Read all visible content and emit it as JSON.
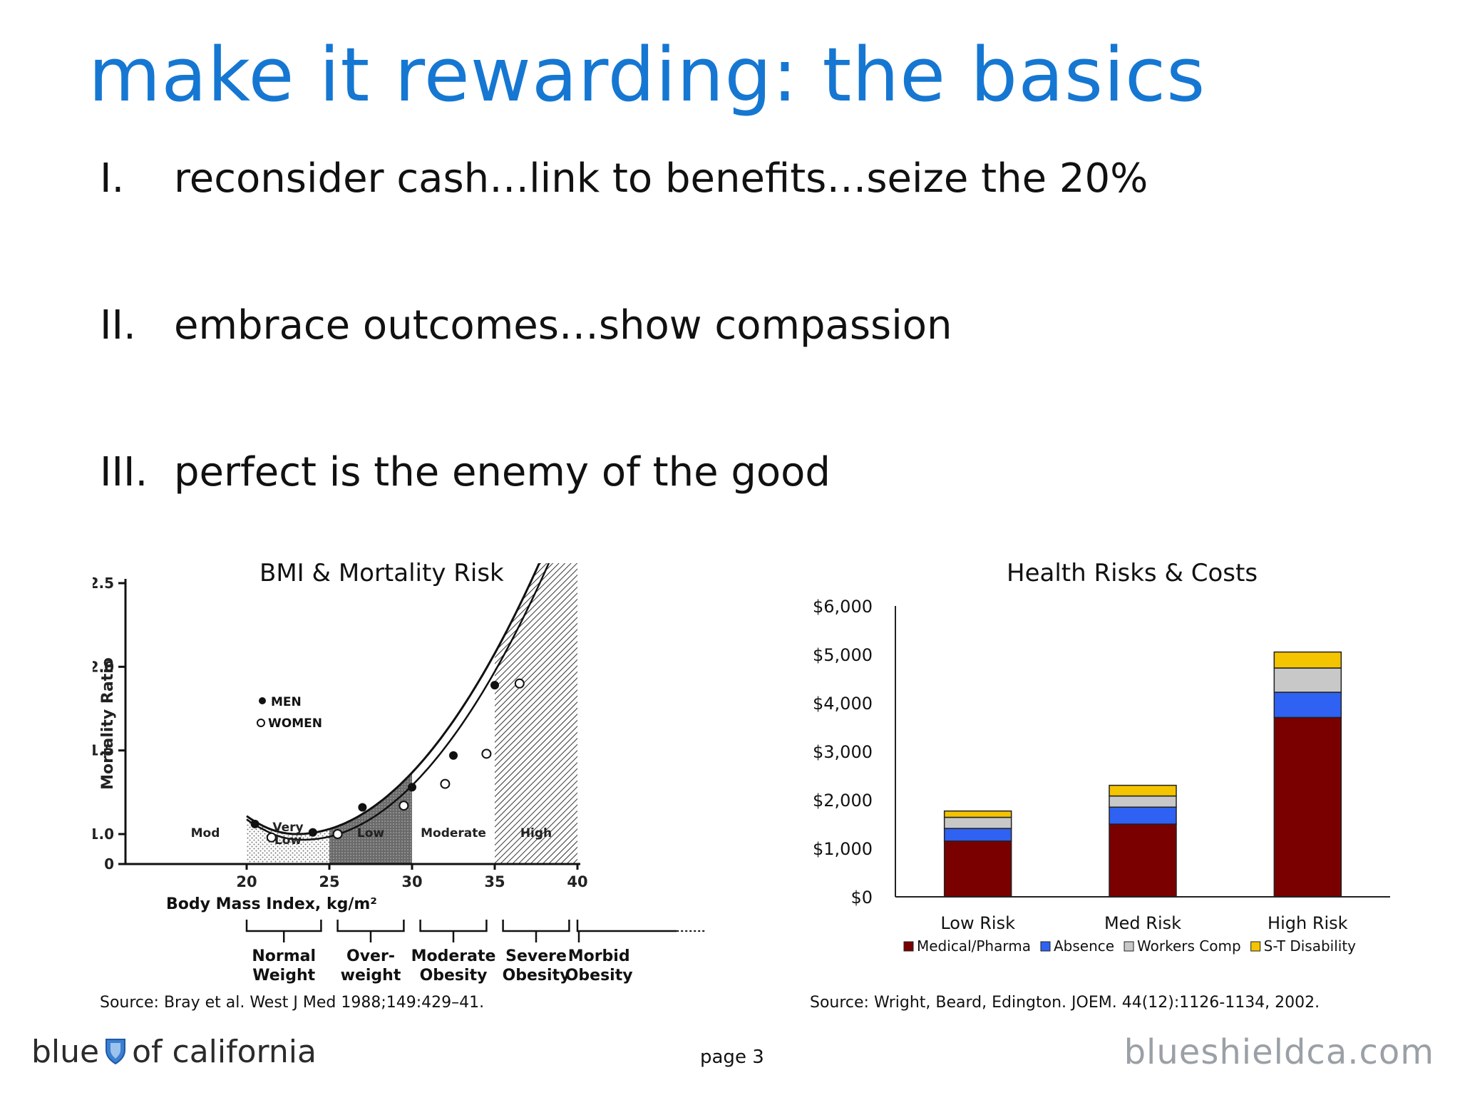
{
  "title": "make it rewarding: the basics",
  "bullets": [
    {
      "num": "I.",
      "text": "reconsider cash…link to benefits…seize the 20%"
    },
    {
      "num": "II.",
      "text": "embrace outcomes…show compassion"
    },
    {
      "num": "III.",
      "text": "perfect is the enemy of the good"
    }
  ],
  "bmi_chart": {
    "title": "BMI & Mortality Risk",
    "ylabel": "Mortality Ratio",
    "xlabel": "Body Mass Index, kg/m²",
    "y_ticks": [
      "2.5",
      "2.0",
      "1.5",
      "1.0",
      "0"
    ],
    "x_ticks": [
      "20",
      "25",
      "30",
      "35",
      "40"
    ],
    "legend": {
      "men": "MEN",
      "women": "WOMEN"
    },
    "zones": [
      "Mod",
      "Very Low",
      "Low",
      "Moderate",
      "High"
    ],
    "categories": [
      {
        "line1": "Normal",
        "line2": "Weight"
      },
      {
        "line1": "Over-",
        "line2": "weight"
      },
      {
        "line1": "Moderate",
        "line2": "Obesity"
      },
      {
        "line1": "Severe",
        "line2": "Obesity"
      },
      {
        "line1": "Morbid",
        "line2": "Obesity"
      }
    ],
    "men_points": [
      [
        20.5,
        1.06
      ],
      [
        24,
        1.01
      ],
      [
        27,
        1.16
      ],
      [
        30,
        1.28
      ],
      [
        32.5,
        1.47
      ],
      [
        35,
        1.89
      ]
    ],
    "women_points": [
      [
        21.5,
        0.98
      ],
      [
        25.5,
        1.0
      ],
      [
        29.5,
        1.17
      ],
      [
        32,
        1.3
      ],
      [
        34.5,
        1.48
      ],
      [
        36.5,
        1.9
      ]
    ],
    "source": "Source:  Bray et al. West J Med 1988;149:429–41."
  },
  "chart_data": {
    "type": "bar",
    "stacked": true,
    "title": "Health Risks & Costs",
    "categories": [
      "Low Risk",
      "Med Risk",
      "High Risk"
    ],
    "series": [
      {
        "name": "Medical/Pharma",
        "color": "#7a0000",
        "values": [
          1150,
          1500,
          3700
        ]
      },
      {
        "name": "Absence",
        "color": "#2f62f2",
        "values": [
          260,
          350,
          520
        ]
      },
      {
        "name": "Workers Comp",
        "color": "#c8c8c8",
        "values": [
          230,
          230,
          500
        ]
      },
      {
        "name": "S-T Disability",
        "color": "#f5c400",
        "values": [
          130,
          220,
          330
        ]
      }
    ],
    "y_ticks": [
      "$0",
      "$1,000",
      "$2,000",
      "$3,000",
      "$4,000",
      "$5,000",
      "$6,000"
    ],
    "ylim": [
      0,
      6000
    ],
    "legend_position": "bottom",
    "source": "Source:  Wright, Beard, Edington. JOEM. 44(12):1126-1134, 2002."
  },
  "footer": {
    "page": "page 3",
    "brand_left_1": "blue",
    "brand_left_2": "of california",
    "brand_right": "blueshieldca.com"
  }
}
